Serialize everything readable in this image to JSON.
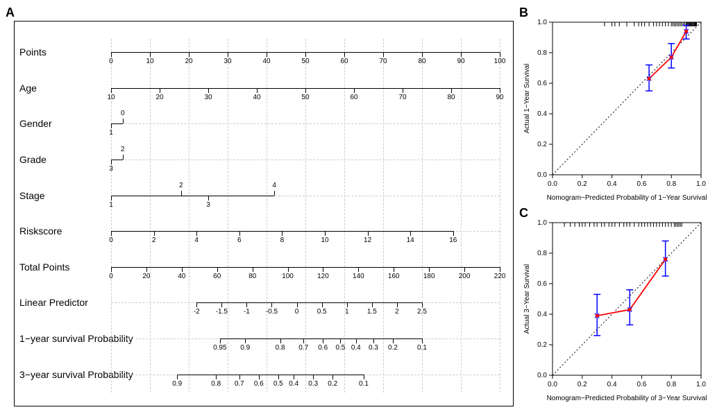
{
  "labels": {
    "A": "A",
    "B": "B",
    "C": "C"
  },
  "nomogram": {
    "rows": [
      {
        "label": "Points",
        "ticks": [
          0,
          10,
          20,
          30,
          40,
          50,
          60,
          70,
          80,
          90,
          100
        ],
        "min": 0,
        "max": 100,
        "rel_start": 0,
        "rel_end": 1
      },
      {
        "label": "Age",
        "ticks": [
          10,
          20,
          30,
          40,
          50,
          60,
          70,
          80,
          90
        ],
        "min": 10,
        "max": 90,
        "rel_start": 0,
        "rel_end": 1,
        "ticks_above": true
      },
      {
        "label": "Gender",
        "ticks": [
          1,
          0
        ],
        "positions": [
          0,
          0.03
        ],
        "rel_start": 0,
        "rel_end": 0.03,
        "stagger": [
          0,
          1
        ]
      },
      {
        "label": "Grade",
        "ticks": [
          3,
          2
        ],
        "positions": [
          0,
          0.03
        ],
        "rel_start": 0,
        "rel_end": 0.03,
        "stagger": [
          0,
          1
        ]
      },
      {
        "label": "Stage",
        "ticks": [
          1,
          2,
          3,
          4
        ],
        "positions": [
          0,
          0.18,
          0.25,
          0.42
        ],
        "rel_start": 0,
        "rel_end": 0.42,
        "stagger": [
          0,
          1,
          0,
          1
        ]
      },
      {
        "label": "Riskscore",
        "ticks": [
          0,
          2,
          4,
          6,
          8,
          10,
          12,
          14,
          16
        ],
        "min": 0,
        "max": 16,
        "rel_start": 0,
        "rel_end": 0.88
      },
      {
        "label": "Total Points",
        "ticks": [
          0,
          20,
          40,
          60,
          80,
          100,
          120,
          140,
          160,
          180,
          200,
          220
        ],
        "min": 0,
        "max": 220,
        "rel_start": 0,
        "rel_end": 1
      },
      {
        "label": "Linear Predictor",
        "ticks": [
          -2,
          -1.5,
          -1,
          -0.5,
          0,
          0.5,
          1,
          1.5,
          2,
          2.5
        ],
        "min": -2,
        "max": 2.5,
        "rel_start": 0.22,
        "rel_end": 0.8
      },
      {
        "label": "1−year survival Probability",
        "ticks": [
          0.95,
          0.9,
          0.8,
          0.7,
          0.6,
          0.5,
          0.4,
          0.3,
          0.2,
          0.1
        ],
        "positions": [
          0.28,
          0.345,
          0.435,
          0.495,
          0.545,
          0.59,
          0.63,
          0.675,
          0.725,
          0.8
        ]
      },
      {
        "label": "3−year survival Probability",
        "ticks": [
          0.9,
          0.8,
          0.7,
          0.6,
          0.5,
          0.4,
          0.3,
          0.2,
          0.1
        ],
        "positions": [
          0.17,
          0.27,
          0.33,
          0.38,
          0.43,
          0.47,
          0.52,
          0.57,
          0.65
        ]
      }
    ],
    "row_label_fontsize": 14,
    "tick_fontsize": 10
  },
  "calibration_B": {
    "xlabel": "Nomogram−Predicted Probability of 1−Year Survival",
    "ylabel": "Actual 1−Year Survival",
    "xlim": [
      0,
      1
    ],
    "ylim": [
      0,
      1
    ],
    "ticks": [
      0.0,
      0.2,
      0.4,
      0.6,
      0.8,
      1.0
    ],
    "diag_color": "#000000",
    "line_color": "#ff0000",
    "err_color": "#0000ff",
    "points": [
      {
        "x": 0.65,
        "y": 0.63,
        "lo": 0.55,
        "hi": 0.72
      },
      {
        "x": 0.8,
        "y": 0.77,
        "lo": 0.7,
        "hi": 0.86
      },
      {
        "x": 0.9,
        "y": 0.94,
        "lo": 0.89,
        "hi": 0.98
      }
    ],
    "rug_y": 1.0,
    "rug_x": [
      0.35,
      0.4,
      0.42,
      0.45,
      0.5,
      0.55,
      0.58,
      0.6,
      0.62,
      0.65,
      0.68,
      0.7,
      0.72,
      0.74,
      0.76,
      0.78,
      0.8,
      0.81,
      0.82,
      0.83,
      0.84,
      0.85,
      0.86,
      0.87,
      0.88,
      0.89,
      0.9,
      0.905,
      0.91,
      0.915,
      0.92,
      0.925,
      0.93,
      0.935,
      0.94,
      0.945,
      0.95,
      0.955,
      0.96,
      0.965,
      0.97
    ]
  },
  "calibration_C": {
    "xlabel": "Nomogram−Predicted Probability of 3−Year Survival",
    "ylabel": "Actual 3−Year Survival",
    "xlim": [
      0,
      1
    ],
    "ylim": [
      0,
      1
    ],
    "ticks": [
      0.0,
      0.2,
      0.4,
      0.6,
      0.8,
      1.0
    ],
    "diag_color": "#000000",
    "line_color": "#ff0000",
    "err_color": "#0000ff",
    "points": [
      {
        "x": 0.3,
        "y": 0.39,
        "lo": 0.26,
        "hi": 0.53
      },
      {
        "x": 0.52,
        "y": 0.43,
        "lo": 0.33,
        "hi": 0.56
      },
      {
        "x": 0.76,
        "y": 0.76,
        "lo": 0.65,
        "hi": 0.88
      }
    ],
    "rug_y": 1.0,
    "rug_x": [
      0.08,
      0.12,
      0.15,
      0.18,
      0.2,
      0.22,
      0.25,
      0.28,
      0.3,
      0.33,
      0.35,
      0.38,
      0.4,
      0.42,
      0.45,
      0.48,
      0.5,
      0.52,
      0.55,
      0.58,
      0.6,
      0.62,
      0.64,
      0.66,
      0.68,
      0.7,
      0.72,
      0.74,
      0.76,
      0.78,
      0.8,
      0.82,
      0.83,
      0.84,
      0.85,
      0.86,
      0.87
    ]
  }
}
